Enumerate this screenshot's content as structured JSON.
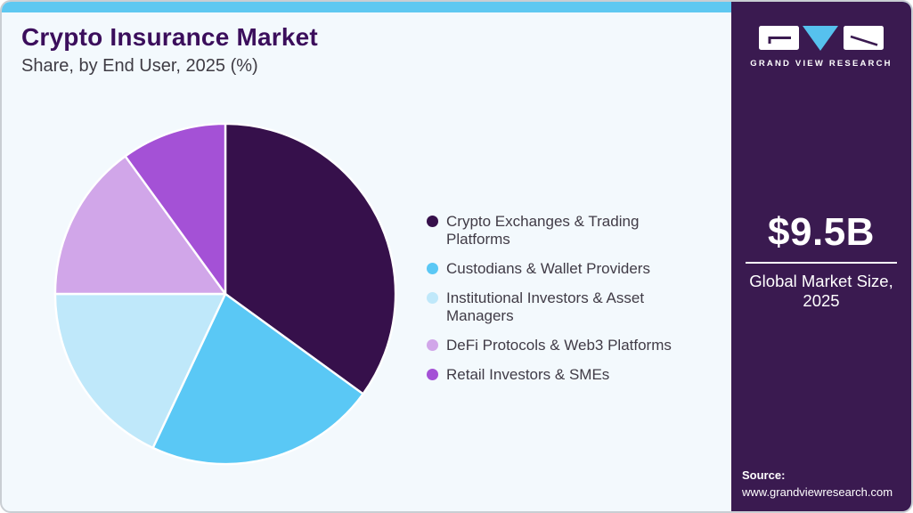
{
  "card": {
    "background": "#f3f9fd",
    "border_color": "#c9ced3",
    "top_bar_color": "#5ec8f1"
  },
  "header": {
    "title": "Crypto Insurance Market",
    "subtitle": "Share, by End User, 2025 (%)",
    "title_color": "#3b0e5c"
  },
  "chart_data": {
    "type": "pie",
    "title": "Crypto Insurance Market Share, by End User, 2025 (%)",
    "unit": "%",
    "labels": [
      "Crypto Exchanges & Trading Platforms",
      "Custodians & Wallet Providers",
      "Institutional Investors & Asset Managers",
      "DeFi Protocols & Web3 Platforms",
      "Retail Investors & SMEs"
    ],
    "values": [
      35,
      22,
      18,
      15,
      10
    ],
    "colors": [
      "#36104b",
      "#5ac8f5",
      "#bfe8fa",
      "#d1a6e9",
      "#a451d6"
    ],
    "start_angle_deg": 0,
    "direction": "clockwise",
    "legend_position": "right"
  },
  "legend": {
    "items": [
      {
        "lines": [
          "Crypto Exchanges & Trading",
          "Platforms"
        ],
        "color": "#36104b"
      },
      {
        "lines": [
          "Custodians & Wallet Providers"
        ],
        "color": "#5ac8f5"
      },
      {
        "lines": [
          "Institutional Investors & Asset",
          "Managers"
        ],
        "color": "#bfe8fa"
      },
      {
        "lines": [
          "DeFi Protocols & Web3 Platforms"
        ],
        "color": "#d1a6e9"
      },
      {
        "lines": [
          "Retail Investors & SMEs"
        ],
        "color": "#a451d6"
      }
    ]
  },
  "sidebar": {
    "background": "#3a1a50",
    "logo_triangle_color": "#56c1ee",
    "brand": "GRAND VIEW RESEARCH",
    "market_size": "$9.5B",
    "market_caption": "Global Market Size, 2025",
    "source_label": "Source:",
    "source_url": "www.grandviewresearch.com"
  }
}
